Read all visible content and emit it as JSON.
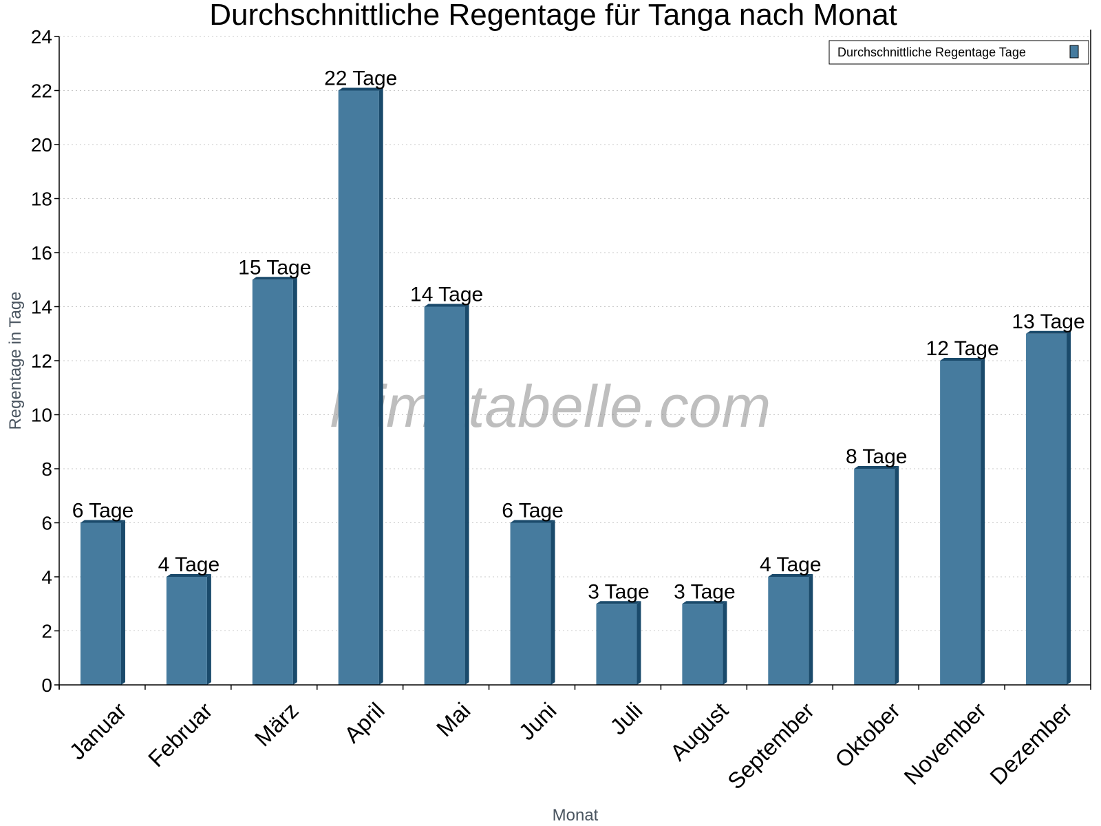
{
  "chart_data": {
    "type": "bar",
    "title": "Durchschnittliche Regentage für Tanga nach Monat",
    "xlabel": "Monat",
    "ylabel": "Regentage in Tage",
    "categories": [
      "Januar",
      "Februar",
      "März",
      "April",
      "Mai",
      "Juni",
      "Juli",
      "August",
      "September",
      "Oktober",
      "November",
      "Dezember"
    ],
    "series": [
      {
        "name": "Durchschnittliche Regentage Tage",
        "values": [
          6,
          4,
          15,
          22,
          14,
          6,
          3,
          3,
          4,
          8,
          12,
          13
        ]
      }
    ],
    "data_labels": [
      "6 Tage",
      "4 Tage",
      "15 Tage",
      "22 Tage",
      "14 Tage",
      "6 Tage",
      "3 Tage",
      "3 Tage",
      "4 Tage",
      "8 Tage",
      "12 Tage",
      "13 Tage"
    ],
    "yticks": [
      0,
      2,
      4,
      6,
      8,
      10,
      12,
      14,
      16,
      18,
      20,
      22,
      24
    ],
    "ylim": [
      0,
      24
    ],
    "grid": true,
    "legend_position": "top-right",
    "watermark": "klimatabelle.com",
    "colors": {
      "bar": "#467b9e",
      "bar_side": "#1a4a6b",
      "grid": "#c8c8c8"
    }
  }
}
